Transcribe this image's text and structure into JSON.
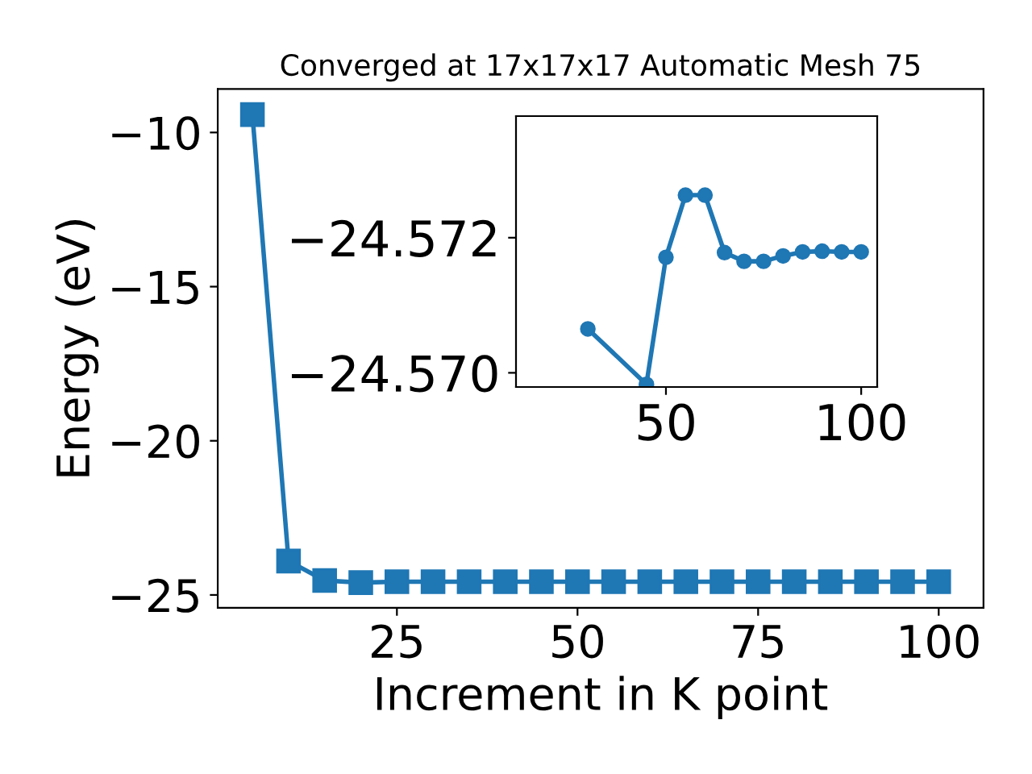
{
  "chart_data": [
    {
      "type": "line",
      "title": "Converged at 17x17x17 Automatic Mesh 75",
      "xlabel": "Increment in K point",
      "ylabel": "Energy (eV)",
      "marker": "square",
      "line_style": "solid",
      "grid": false,
      "xlim": [
        0.2,
        106.2
      ],
      "xticks": [
        25,
        50,
        75,
        100
      ],
      "ylim": [
        -25.42,
        -8.59
      ],
      "yticks": [
        -25,
        -20,
        -15,
        -10
      ],
      "series": [
        {
          "color": "#1f77b4",
          "x": [
            5,
            10,
            15,
            20,
            25,
            30,
            35,
            40,
            45,
            50,
            55,
            60,
            65,
            70,
            75,
            80,
            85,
            90,
            95,
            100
          ],
          "values": [
            -9.42,
            -23.9,
            -24.53,
            -24.6,
            -24.57,
            -24.57,
            -24.57,
            -24.57,
            -24.57,
            -24.57,
            -24.57,
            -24.57,
            -24.57,
            -24.57,
            -24.57,
            -24.57,
            -24.57,
            -24.57,
            -24.57,
            -24.57
          ]
        }
      ]
    },
    {
      "type": "line",
      "marker": "circle",
      "line_style": "solid",
      "grid": false,
      "xlim": [
        11.6,
        104.1
      ],
      "xticks": [
        50,
        100
      ],
      "ylim": [
        -24.56979,
        -24.5738
      ],
      "yticks": [
        {
          "value": -24.572,
          "label": "−24.572"
        },
        {
          "value": -24.57,
          "label": "−24.570"
        }
      ],
      "series": [
        {
          "color": "#1f77b4",
          "x": [
            30,
            45,
            50,
            55,
            60,
            65,
            70,
            75,
            80,
            85,
            90,
            95,
            100
          ],
          "values": [
            -24.57065,
            -24.56983,
            -24.57171,
            -24.57263,
            -24.57263,
            -24.57178,
            -24.57165,
            -24.57165,
            -24.57173,
            -24.57179,
            -24.5718,
            -24.57179,
            -24.57179
          ]
        }
      ]
    }
  ]
}
